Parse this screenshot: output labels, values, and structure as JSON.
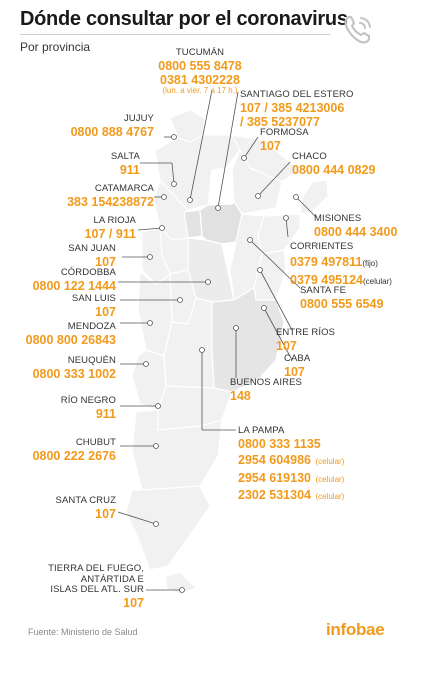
{
  "header": {
    "title": "Dónde consultar por el coronavirus",
    "subtitle": "Por provincia"
  },
  "icons": {
    "phone": "phone-icon"
  },
  "colors": {
    "accent": "#f29a1b",
    "map_fill": "#f1f1f1",
    "map_highlight": "#e0e0e0",
    "text": "#222222"
  },
  "provinces": {
    "tucuman": {
      "name": "TUCUMÁN",
      "phones": [
        "0800 555 8478",
        "0381 4302228"
      ],
      "note": "(lun. a vier. 7 a 17 h.)"
    },
    "santiago": {
      "name": "SANTIAGO DEL ESTERO",
      "phones": [
        "107 / 385 4213006",
        "/ 385 5237077"
      ]
    },
    "jujuy": {
      "name": "JUJUY",
      "phones": [
        "0800 888 4767"
      ]
    },
    "formosa": {
      "name": "FORMOSA",
      "phones": [
        "107"
      ]
    },
    "salta": {
      "name": "SALTA",
      "phones": [
        "911"
      ]
    },
    "chaco": {
      "name": "CHACO",
      "phones": [
        "0800 444 0829"
      ]
    },
    "catamarca": {
      "name": "CATAMARCA",
      "phones": [
        "383 154238872"
      ]
    },
    "misiones": {
      "name": "MISIONES",
      "phones": [
        "0800 444 3400"
      ]
    },
    "larioja": {
      "name": "LA RIOJA",
      "phones": [
        "107 / 911"
      ]
    },
    "corrientes": {
      "name": "CORRIENTES",
      "phones": [
        "0379 497811",
        "0379 495124"
      ],
      "suffixes": [
        "(fijo)",
        "(celular)"
      ]
    },
    "sanjuan": {
      "name": "SAN JUAN",
      "phones": [
        "107"
      ]
    },
    "cordoba": {
      "name": "CÓRDOBBA",
      "phones": [
        "0800 122 1444"
      ]
    },
    "santafe": {
      "name": "SANTA FE",
      "phones": [
        "0800 555 6549"
      ]
    },
    "sanluis": {
      "name": "SAN LUIS",
      "phones": [
        "107"
      ]
    },
    "entrerios": {
      "name": "ENTRE RÍOS",
      "phones": [
        "107"
      ]
    },
    "mendoza": {
      "name": "MENDOZA",
      "phones": [
        "0800 800 26843"
      ]
    },
    "caba": {
      "name": "CABA",
      "phones": [
        "107"
      ]
    },
    "neuquen": {
      "name": "NEUQUÉN",
      "phones": [
        "0800 333 1002"
      ]
    },
    "buenosaires": {
      "name": "BUENOS AIRES",
      "phones": [
        "148"
      ]
    },
    "rionegro": {
      "name": "RÍO NEGRO",
      "phones": [
        "911"
      ]
    },
    "lapampa": {
      "name": "LA PAMPA",
      "phones": [
        "0800 333 1135",
        "2954 604986",
        "2954 619130",
        "2302 531304"
      ],
      "suffixes": [
        "",
        "(celular)",
        "(celular)",
        "(celular)"
      ]
    },
    "chubut": {
      "name": "CHUBUT",
      "phones": [
        "0800 222 2676"
      ]
    },
    "santacruz": {
      "name": "SANTA CRUZ",
      "phones": [
        "107"
      ]
    },
    "tierradelfuego": {
      "name_lines": [
        "TIERRA DEL FUEGO,",
        "ANTÁRTIDA E",
        "ISLAS DEL ATL. SUR"
      ],
      "phones": [
        "107"
      ]
    }
  },
  "footer": {
    "source": "Fuente: Ministerio de Salud",
    "brand": "infobae"
  }
}
